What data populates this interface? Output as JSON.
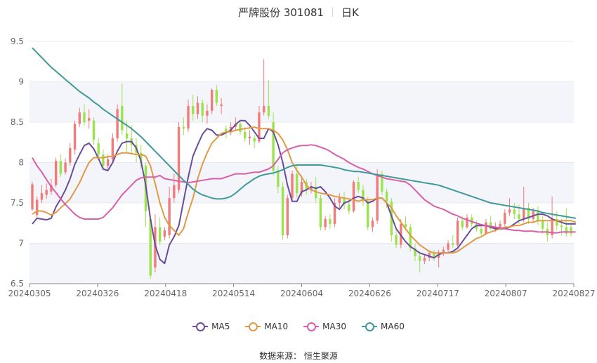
{
  "header": {
    "title": "严牌股份 301081",
    "period": "日K"
  },
  "source_text": "数据来源：  恒生聚源",
  "colors": {
    "up": "#f07b7b",
    "down": "#9be34c",
    "MA5": "#6a4c9c",
    "MA10": "#e09a45",
    "MA30": "#d95fa8",
    "MA60": "#3f9a98",
    "grid": "#e8e8ee",
    "band": "#f4f5fb"
  },
  "chart_data": {
    "type": "candlestick",
    "title": "严牌股份 301081 日K",
    "ylim": [
      6.5,
      9.5
    ],
    "yticks": [
      "6.5",
      "7",
      "7.5",
      "8",
      "8.5",
      "9",
      "9.5"
    ],
    "xticks": [
      "20240305",
      "20240326",
      "20240418",
      "20240514",
      "20240604",
      "20240626",
      "20240717",
      "20240807",
      "20240827"
    ],
    "legend": [
      "MA5",
      "MA10",
      "MA30",
      "MA60"
    ],
    "legend_position": "bottom",
    "grid": true,
    "candles": [
      [
        7.42,
        7.76,
        7.73,
        7.4
      ],
      [
        7.35,
        7.58,
        7.54,
        7.32
      ],
      [
        7.54,
        7.72,
        7.62,
        7.5
      ],
      [
        7.6,
        7.74,
        7.66,
        7.55
      ],
      [
        7.64,
        7.8,
        7.72,
        7.6
      ],
      [
        7.72,
        8.06,
        8.02,
        7.7
      ],
      [
        8.02,
        8.1,
        7.86,
        7.82
      ],
      [
        7.88,
        8.05,
        8.0,
        7.85
      ],
      [
        8.0,
        8.24,
        8.18,
        7.96
      ],
      [
        8.16,
        8.52,
        8.48,
        8.1
      ],
      [
        8.48,
        8.68,
        8.62,
        8.44
      ],
      [
        8.62,
        8.72,
        8.5,
        8.46
      ],
      [
        8.52,
        8.66,
        8.55,
        8.42
      ],
      [
        8.52,
        8.56,
        8.28,
        8.22
      ],
      [
        8.24,
        8.3,
        8.1,
        8.06
      ],
      [
        8.1,
        8.16,
        7.96,
        7.9
      ],
      [
        7.96,
        8.1,
        8.04,
        7.92
      ],
      [
        8.04,
        8.36,
        8.3,
        8.0
      ],
      [
        8.3,
        8.72,
        8.66,
        8.26
      ],
      [
        8.7,
        8.98,
        8.4,
        8.34
      ],
      [
        8.36,
        8.52,
        8.3,
        8.12
      ],
      [
        8.3,
        8.46,
        8.22,
        8.1
      ],
      [
        8.22,
        8.3,
        8.12,
        8.0
      ],
      [
        8.12,
        8.22,
        8.0,
        7.92
      ],
      [
        7.96,
        8.0,
        7.4,
        7.2
      ],
      [
        7.3,
        7.36,
        6.6,
        6.56
      ],
      [
        6.7,
        7.36,
        7.2,
        6.64
      ],
      [
        7.2,
        7.32,
        7.02,
        6.98
      ],
      [
        7.08,
        7.2,
        7.16,
        7.04
      ],
      [
        7.1,
        7.7,
        7.56,
        7.06
      ],
      [
        7.56,
        7.86,
        7.72,
        7.5
      ],
      [
        7.66,
        8.5,
        8.44,
        7.62
      ],
      [
        8.44,
        8.56,
        8.42,
        8.34
      ],
      [
        8.42,
        8.78,
        8.7,
        8.38
      ],
      [
        8.7,
        8.84,
        8.6,
        8.52
      ],
      [
        8.6,
        8.82,
        8.74,
        8.54
      ],
      [
        8.74,
        8.78,
        8.58,
        8.5
      ],
      [
        8.58,
        8.72,
        8.64,
        8.48
      ],
      [
        8.64,
        8.92,
        8.9,
        8.6
      ],
      [
        8.9,
        8.96,
        8.74,
        8.7
      ],
      [
        8.7,
        8.8,
        8.72,
        8.6
      ],
      [
        8.42,
        8.46,
        8.38,
        8.3
      ],
      [
        8.38,
        8.5,
        8.44,
        8.34
      ],
      [
        8.44,
        8.56,
        8.48,
        8.4
      ],
      [
        8.48,
        8.52,
        8.38,
        8.34
      ],
      [
        8.38,
        8.44,
        8.3,
        8.26
      ],
      [
        8.3,
        8.4,
        8.32,
        8.22
      ],
      [
        8.3,
        8.34,
        8.26,
        8.18
      ],
      [
        8.26,
        8.7,
        8.62,
        8.24
      ],
      [
        8.62,
        9.28,
        8.7,
        8.58
      ],
      [
        8.7,
        9.02,
        8.58,
        8.54
      ],
      [
        8.5,
        8.62,
        7.9,
        7.84
      ],
      [
        7.9,
        7.96,
        7.7,
        7.62
      ],
      [
        7.7,
        7.76,
        7.1,
        7.04
      ],
      [
        7.1,
        7.6,
        7.56,
        7.06
      ],
      [
        7.56,
        7.9,
        7.86,
        7.52
      ],
      [
        7.86,
        7.96,
        7.62,
        7.56
      ],
      [
        7.62,
        7.84,
        7.76,
        7.58
      ],
      [
        7.76,
        7.8,
        7.66,
        7.6
      ],
      [
        7.66,
        7.76,
        7.7,
        7.62
      ],
      [
        7.7,
        7.82,
        7.56,
        7.5
      ],
      [
        7.56,
        7.6,
        7.2,
        7.16
      ],
      [
        7.2,
        7.34,
        7.3,
        7.16
      ],
      [
        7.3,
        7.36,
        7.24,
        7.18
      ],
      [
        7.24,
        7.56,
        7.5,
        7.2
      ],
      [
        7.5,
        7.62,
        7.56,
        7.44
      ],
      [
        7.56,
        7.64,
        7.48,
        7.42
      ],
      [
        7.48,
        7.54,
        7.4,
        7.36
      ],
      [
        7.4,
        7.78,
        7.76,
        7.38
      ],
      [
        7.76,
        7.82,
        7.66,
        7.62
      ],
      [
        7.66,
        7.72,
        7.52,
        7.46
      ],
      [
        7.52,
        7.58,
        7.2,
        7.16
      ],
      [
        7.2,
        7.32,
        7.28,
        7.14
      ],
      [
        7.28,
        7.92,
        7.86,
        7.24
      ],
      [
        7.86,
        7.9,
        7.64,
        7.6
      ],
      [
        7.64,
        7.68,
        7.52,
        7.44
      ],
      [
        7.52,
        7.56,
        7.1,
        7.02
      ],
      [
        7.1,
        7.16,
        6.98,
        6.94
      ],
      [
        6.98,
        7.3,
        7.24,
        6.94
      ],
      [
        7.24,
        7.34,
        7.2,
        7.16
      ],
      [
        7.2,
        7.24,
        6.94,
        6.9
      ],
      [
        6.94,
        7.0,
        6.84,
        6.78
      ],
      [
        6.84,
        6.9,
        6.78,
        6.64
      ],
      [
        6.78,
        6.86,
        6.82,
        6.74
      ],
      [
        6.82,
        6.9,
        6.88,
        6.78
      ],
      [
        6.88,
        6.92,
        6.82,
        6.78
      ],
      [
        6.82,
        6.92,
        6.88,
        6.7
      ],
      [
        6.88,
        6.96,
        6.92,
        6.84
      ],
      [
        6.92,
        7.04,
        7.0,
        6.88
      ],
      [
        7.0,
        7.1,
        6.98,
        6.94
      ],
      [
        6.98,
        7.32,
        7.28,
        6.96
      ],
      [
        7.28,
        7.34,
        7.2,
        7.16
      ],
      [
        7.2,
        7.36,
        7.32,
        7.18
      ],
      [
        7.32,
        7.36,
        7.24,
        7.2
      ],
      [
        7.24,
        7.28,
        7.18,
        7.14
      ],
      [
        7.18,
        7.24,
        7.12,
        7.08
      ],
      [
        7.12,
        7.3,
        7.26,
        7.1
      ],
      [
        7.26,
        7.34,
        7.18,
        7.16
      ],
      [
        7.18,
        7.26,
        7.2,
        7.14
      ],
      [
        7.2,
        7.28,
        7.24,
        7.16
      ],
      [
        7.24,
        7.42,
        7.38,
        7.2
      ],
      [
        7.38,
        7.56,
        7.42,
        7.34
      ],
      [
        7.42,
        7.5,
        7.36,
        7.3
      ],
      [
        7.36,
        7.48,
        7.3,
        7.24
      ],
      [
        7.3,
        7.7,
        7.44,
        7.26
      ],
      [
        7.44,
        7.5,
        7.3,
        7.24
      ],
      [
        7.3,
        7.44,
        7.4,
        7.26
      ],
      [
        7.4,
        7.46,
        7.28,
        7.22
      ],
      [
        7.28,
        7.34,
        7.18,
        7.12
      ],
      [
        7.18,
        7.26,
        7.1,
        7.02
      ],
      [
        7.1,
        7.58,
        7.3,
        7.06
      ],
      [
        7.3,
        7.4,
        7.22,
        7.16
      ],
      [
        7.22,
        7.3,
        7.2,
        7.1
      ],
      [
        7.2,
        7.44,
        7.12,
        7.08
      ],
      [
        7.2,
        7.26,
        7.12,
        7.08
      ]
    ],
    "ma": {
      "MA5": [
        7.24,
        7.31,
        7.3,
        7.29,
        7.31,
        7.45,
        7.55,
        7.66,
        7.8,
        7.98,
        8.1,
        8.21,
        8.24,
        8.17,
        8.05,
        7.92,
        7.9,
        8.0,
        8.14,
        8.24,
        8.26,
        8.26,
        8.18,
        8.02,
        7.72,
        7.3,
        6.98,
        6.8,
        6.75,
        6.98,
        7.08,
        7.22,
        7.52,
        7.82,
        8.08,
        8.22,
        8.35,
        8.42,
        8.4,
        8.34,
        8.34,
        8.37,
        8.4,
        8.47,
        8.52,
        8.52,
        8.46,
        8.38,
        8.3,
        8.3,
        8.42,
        8.38,
        8.22,
        8.0,
        7.72,
        7.52,
        7.52,
        7.64,
        7.66,
        7.7,
        7.68,
        7.7,
        7.64,
        7.56,
        7.46,
        7.42,
        7.5,
        7.52,
        7.56,
        7.58,
        7.56,
        7.5,
        7.52,
        7.56,
        7.56,
        7.5,
        7.34,
        7.18,
        7.1,
        7.02,
        6.96,
        6.92,
        6.88,
        6.86,
        6.84,
        6.82,
        6.86,
        6.88,
        6.88,
        6.9,
        6.94,
        7.02,
        7.1,
        7.18,
        7.22,
        7.22,
        7.22,
        7.2,
        7.18,
        7.18,
        7.18,
        7.2,
        7.24,
        7.28,
        7.3,
        7.32,
        7.34,
        7.36,
        7.36,
        7.34,
        7.3,
        7.28,
        7.26,
        7.24,
        7.24,
        7.24
      ],
      "MA10": [
        7.36,
        7.4,
        7.4,
        7.38,
        7.35,
        7.38,
        7.44,
        7.49,
        7.55,
        7.65,
        7.75,
        7.88,
        8.0,
        8.06,
        8.06,
        8.06,
        8.07,
        8.08,
        8.1,
        8.12,
        8.12,
        8.11,
        8.1,
        8.1,
        8.08,
        7.96,
        7.74,
        7.5,
        7.32,
        7.22,
        7.16,
        7.1,
        7.18,
        7.38,
        7.56,
        7.8,
        7.98,
        8.12,
        8.24,
        8.3,
        8.36,
        8.38,
        8.38,
        8.4,
        8.41,
        8.42,
        8.43,
        8.44,
        8.42,
        8.42,
        8.42,
        8.4,
        8.36,
        8.28,
        8.16,
        8.0,
        7.9,
        7.82,
        7.72,
        7.66,
        7.64,
        7.62,
        7.61,
        7.6,
        7.58,
        7.57,
        7.56,
        7.55,
        7.54,
        7.52,
        7.54,
        7.54,
        7.54,
        7.56,
        7.56,
        7.5,
        7.44,
        7.34,
        7.26,
        7.18,
        7.1,
        7.04,
        6.98,
        6.94,
        6.9,
        6.88,
        6.88,
        6.88,
        6.88,
        6.88,
        6.9,
        6.94,
        6.98,
        7.02,
        7.06,
        7.08,
        7.12,
        7.14,
        7.16,
        7.18,
        7.2,
        7.2,
        7.22,
        7.22,
        7.24,
        7.26,
        7.26,
        7.28,
        7.28,
        7.28,
        7.28,
        7.28,
        7.28,
        7.28,
        7.28,
        7.26
      ],
      "MA30": [
        8.06,
        7.96,
        7.88,
        7.79,
        7.7,
        7.63,
        7.55,
        7.48,
        7.42,
        7.36,
        7.32,
        7.3,
        7.3,
        7.3,
        7.3,
        7.32,
        7.38,
        7.44,
        7.52,
        7.6,
        7.66,
        7.72,
        7.78,
        7.81,
        7.82,
        7.82,
        7.82,
        7.84,
        7.8,
        7.79,
        7.78,
        7.77,
        7.76,
        7.75,
        7.76,
        7.77,
        7.78,
        7.79,
        7.8,
        7.8,
        7.8,
        7.82,
        7.84,
        7.86,
        7.86,
        7.86,
        7.87,
        7.88,
        7.88,
        7.9,
        7.92,
        7.96,
        8.04,
        8.12,
        8.16,
        8.18,
        8.2,
        8.21,
        8.21,
        8.22,
        8.21,
        8.19,
        8.17,
        8.14,
        8.1,
        8.07,
        8.04,
        8.0,
        7.97,
        7.94,
        7.92,
        7.89,
        7.86,
        7.84,
        7.82,
        7.8,
        7.79,
        7.78,
        7.77,
        7.76,
        7.72,
        7.66,
        7.6,
        7.54,
        7.5,
        7.46,
        7.44,
        7.42,
        7.39,
        7.36,
        7.34,
        7.31,
        7.29,
        7.27,
        7.25,
        7.23,
        7.22,
        7.21,
        7.2,
        7.19,
        7.18,
        7.17,
        7.16,
        7.16,
        7.15,
        7.15,
        7.15,
        7.14,
        7.14,
        7.14,
        7.13,
        7.13,
        7.14,
        7.14,
        7.14,
        7.14
      ],
      "MA60": [
        9.42,
        9.36,
        9.3,
        9.24,
        9.18,
        9.13,
        9.08,
        9.03,
        8.98,
        8.93,
        8.88,
        8.84,
        8.8,
        8.75,
        8.71,
        8.66,
        8.62,
        8.58,
        8.54,
        8.5,
        8.46,
        8.42,
        8.37,
        8.32,
        8.26,
        8.2,
        8.14,
        8.08,
        8.02,
        7.96,
        7.9,
        7.84,
        7.78,
        7.73,
        7.67,
        7.63,
        7.6,
        7.58,
        7.56,
        7.55,
        7.55,
        7.56,
        7.58,
        7.62,
        7.67,
        7.72,
        7.76,
        7.8,
        7.83,
        7.85,
        7.86,
        7.87,
        7.89,
        7.91,
        7.94,
        7.96,
        7.97,
        7.97,
        7.97,
        7.97,
        7.97,
        7.97,
        7.96,
        7.95,
        7.94,
        7.93,
        7.91,
        7.9,
        7.89,
        7.89,
        7.88,
        7.87,
        7.86,
        7.85,
        7.84,
        7.83,
        7.82,
        7.81,
        7.8,
        7.79,
        7.78,
        7.77,
        7.76,
        7.75,
        7.74,
        7.73,
        7.72,
        7.7,
        7.68,
        7.66,
        7.64,
        7.62,
        7.6,
        7.58,
        7.56,
        7.54,
        7.52,
        7.5,
        7.49,
        7.48,
        7.47,
        7.46,
        7.45,
        7.44,
        7.43,
        7.42,
        7.41,
        7.4,
        7.38,
        7.37,
        7.36,
        7.35,
        7.34,
        7.33,
        7.32,
        7.31
      ]
    }
  }
}
